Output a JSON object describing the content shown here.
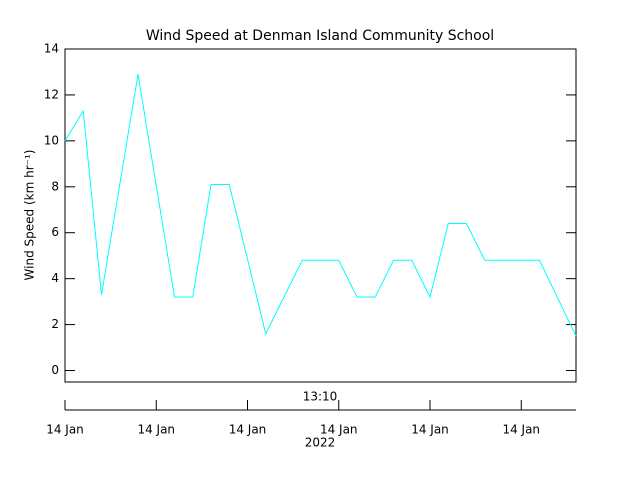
{
  "chart_data": {
    "type": "line",
    "title": "Wind Speed at Denman Island Community School",
    "ylabel": "Wind Speed (km hr⁻¹)",
    "time_label": "13:10",
    "year_label": "2022",
    "x": [
      0,
      1,
      2,
      4,
      6,
      7,
      8,
      9,
      11,
      13,
      15,
      16,
      17,
      18,
      19,
      20,
      21,
      22,
      23,
      26,
      28
    ],
    "series": [
      {
        "color": "#00ffff",
        "values": [
          10.0,
          11.3,
          3.3,
          12.9,
          3.2,
          3.2,
          8.1,
          8.1,
          1.6,
          4.8,
          4.8,
          3.2,
          3.2,
          4.8,
          4.8,
          3.2,
          6.4,
          6.4,
          4.8,
          4.8,
          1.5
        ]
      }
    ],
    "xlim": [
      0,
      28
    ],
    "xticks": [
      {
        "value": 0,
        "label": "14 Jan"
      },
      {
        "value": 5,
        "label": "14 Jan"
      },
      {
        "value": 10,
        "label": "14 Jan"
      },
      {
        "value": 15,
        "label": "14 Jan"
      },
      {
        "value": 20,
        "label": "14 Jan"
      },
      {
        "value": 25,
        "label": "14 Jan"
      }
    ],
    "ylim": [
      -0.5,
      14
    ],
    "yticks": [
      0,
      2,
      4,
      6,
      8,
      10,
      12,
      14
    ]
  }
}
